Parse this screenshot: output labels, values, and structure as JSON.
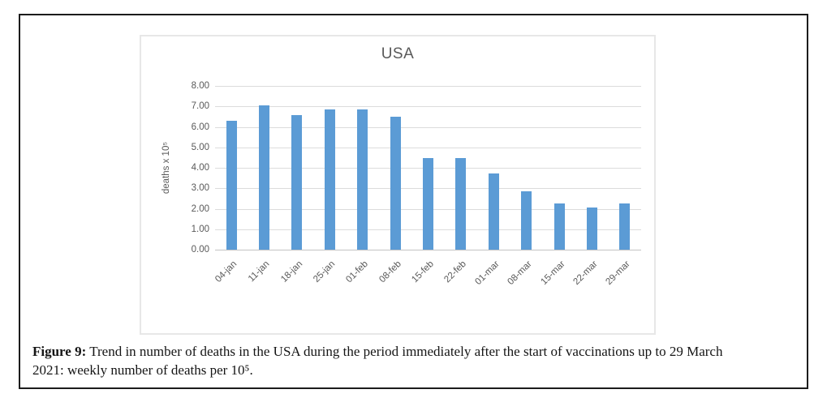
{
  "figure": {
    "caption": {
      "label": "Figure 9:",
      "line1_rest": " Trend in number of deaths in the USA during the period immediately after the start of vaccinations up to 29 March",
      "line2": "2021: weekly number of deaths per 10⁵."
    }
  },
  "chart_data": {
    "type": "bar",
    "title": "USA",
    "categories": [
      "04-jan",
      "11-jan",
      "18-jan",
      "25-jan",
      "01-feb",
      "08-feb",
      "15-feb",
      "22-feb",
      "01-mar",
      "08-mar",
      "15-mar",
      "22-mar",
      "29-mar"
    ],
    "values": [
      6.35,
      7.1,
      6.6,
      6.9,
      6.9,
      6.55,
      4.5,
      4.5,
      3.75,
      2.9,
      2.3,
      2.1,
      2.3
    ],
    "xlabel": "",
    "ylabel": "deaths x 10⁵",
    "ylim": [
      0,
      8
    ],
    "ytick_labels": [
      "0.00",
      "1.00",
      "2.00",
      "3.00",
      "4.00",
      "5.00",
      "6.00",
      "7.00",
      "8.00"
    ],
    "grid": true,
    "legend": "none",
    "bar_color": "#5B9BD5",
    "axis_text_color": "#595959",
    "gridline_color": "#dcdcdc",
    "axisline_color": "#c3c3c3",
    "chart_border_color": "#e7e7e7",
    "frame_border_color": "#1c1c1c"
  }
}
